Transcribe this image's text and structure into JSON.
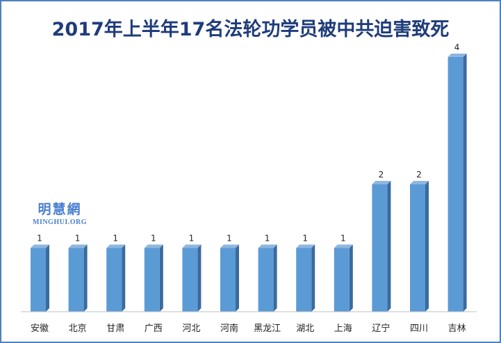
{
  "chart_data": {
    "type": "bar",
    "title": "2017年上半年17名法轮功学员被中共迫害致死",
    "categories": [
      "安徽",
      "北京",
      "甘肃",
      "广西",
      "河北",
      "河南",
      "黑龙江",
      "湖北",
      "上海",
      "辽宁",
      "四川",
      "吉林"
    ],
    "values": [
      1,
      1,
      1,
      1,
      1,
      1,
      1,
      1,
      1,
      2,
      2,
      4
    ],
    "ylim": [
      0,
      4
    ],
    "grid": false,
    "legend": "none",
    "data_labels": true,
    "colors": {
      "bar_front": "#5b9bd5",
      "bar_side": "#3b6a9e",
      "bar_top": "#8fb6e0",
      "title": "#1f3c7a",
      "border": "#4f7fbf"
    }
  },
  "watermark": {
    "name_cn": "明慧網",
    "name_en": "MINGHUI.ORG"
  }
}
